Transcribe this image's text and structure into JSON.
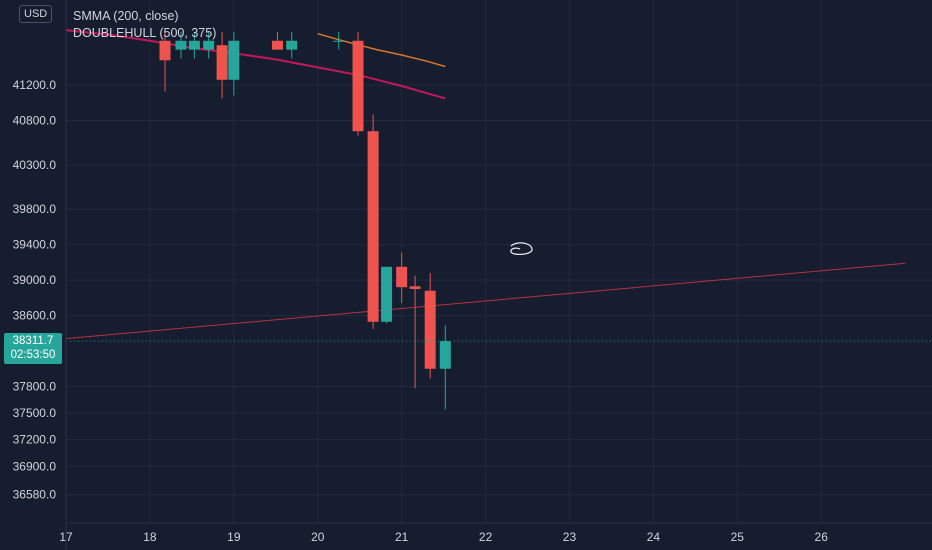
{
  "currency": "USD",
  "legend": {
    "smma": "SMMA (200, close)",
    "doublehull": "DOUBLEHULL (500, 375)"
  },
  "last_price": {
    "value": "38311.7",
    "countdown": "02:53:50"
  },
  "price_labels": [
    "41200.0",
    "40800.0",
    "40300.0",
    "39800.0",
    "39400.0",
    "39000.0",
    "38600.0",
    "37800.0",
    "37500.0",
    "37200.0",
    "36900.0",
    "36580.0"
  ],
  "time_labels": [
    "17",
    "18",
    "19",
    "20",
    "21",
    "22",
    "23",
    "24",
    "25",
    "26"
  ],
  "colors": {
    "up": "#26a69a",
    "down": "#ef5350",
    "smma": "#d9742c",
    "doublehull": "#c2185b"
  },
  "chart_data": {
    "type": "candlestick",
    "x_unit": "day",
    "y_unit": "USD",
    "candles": [
      {
        "t": 18.18,
        "o": 41700,
        "h": 41800,
        "l": 41130,
        "c": 41480
      },
      {
        "t": 18.37,
        "o": 41600,
        "h": 41800,
        "l": 41500,
        "c": 41700
      },
      {
        "t": 18.53,
        "o": 41600,
        "h": 41800,
        "l": 41500,
        "c": 41700
      },
      {
        "t": 18.7,
        "o": 41600,
        "h": 41800,
        "l": 41500,
        "c": 41700
      },
      {
        "t": 18.86,
        "o": 41650,
        "h": 41800,
        "l": 41050,
        "c": 41260
      },
      {
        "t": 19.0,
        "o": 41260,
        "h": 41800,
        "l": 41080,
        "c": 41700
      },
      {
        "t": 19.52,
        "o": 41700,
        "h": 41800,
        "l": 41600,
        "c": 41600
      },
      {
        "t": 19.69,
        "o": 41600,
        "h": 41800,
        "l": 41500,
        "c": 41700
      },
      {
        "t": 20.25,
        "o": 41700,
        "h": 41800,
        "l": 41600,
        "c": 41700
      },
      {
        "t": 20.48,
        "o": 41700,
        "h": 41800,
        "l": 40630,
        "c": 40680
      },
      {
        "t": 20.66,
        "o": 40680,
        "h": 40870,
        "l": 38450,
        "c": 38530
      },
      {
        "t": 20.82,
        "o": 38530,
        "h": 39150,
        "l": 38510,
        "c": 39150
      },
      {
        "t": 21.0,
        "o": 39150,
        "h": 39310,
        "l": 38740,
        "c": 38920
      },
      {
        "t": 21.16,
        "o": 38930,
        "h": 39050,
        "l": 37780,
        "c": 38900
      },
      {
        "t": 21.34,
        "o": 38880,
        "h": 39080,
        "l": 37890,
        "c": 38000
      },
      {
        "t": 21.52,
        "o": 38000,
        "h": 38490,
        "l": 37540,
        "c": 38311.7
      }
    ],
    "series": [
      {
        "name": "SMMA (200, close)",
        "x": [
          20.0,
          20.3,
          20.7,
          21.0,
          21.3,
          21.52
        ],
        "y": [
          41780,
          41700,
          41600,
          41540,
          41470,
          41410
        ]
      },
      {
        "name": "DOUBLEHULL (500, 375)",
        "x": [
          17.0,
          17.5,
          18.0,
          18.5,
          19.0,
          19.5,
          20.0,
          20.5,
          21.0,
          21.52
        ],
        "y": [
          41820,
          41770,
          41700,
          41620,
          41560,
          41490,
          41400,
          41310,
          41190,
          41050
        ]
      }
    ],
    "trendline": {
      "x": [
        17.0,
        27.0
      ],
      "y": [
        38340,
        39190
      ]
    },
    "last_price_line": 38311.7,
    "ylim": [
      36260,
      42160
    ],
    "xlim": [
      17.0,
      27.32
    ]
  }
}
